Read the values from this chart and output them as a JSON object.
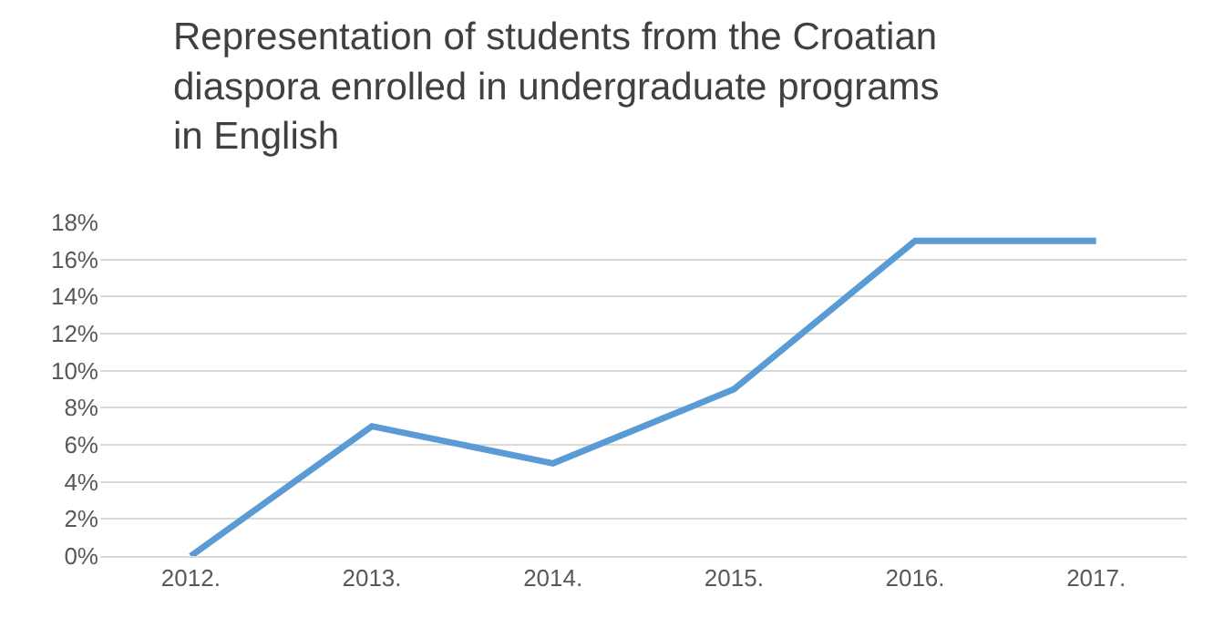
{
  "chart_data": {
    "type": "line",
    "title": "Representation of students from the Croatian diaspora enrolled in undergraduate programs in English",
    "categories": [
      "2012.",
      "2013.",
      "2014.",
      "2015.",
      "2016.",
      "2017."
    ],
    "series": [
      {
        "color": "#5b9bd5",
        "values": [
          0,
          7,
          5,
          9,
          17,
          17
        ]
      }
    ],
    "ylim": [
      0,
      18
    ],
    "yticks": [
      {
        "value": 0,
        "label": "0%"
      },
      {
        "value": 2,
        "label": "2%"
      },
      {
        "value": 4,
        "label": "4%"
      },
      {
        "value": 6,
        "label": "6%"
      },
      {
        "value": 8,
        "label": "8%"
      },
      {
        "value": 10,
        "label": "10%"
      },
      {
        "value": 12,
        "label": "12%"
      },
      {
        "value": 14,
        "label": "14%"
      },
      {
        "value": 16,
        "label": "16%"
      },
      {
        "value": 18,
        "label": "18%"
      }
    ],
    "grid": "y",
    "marker": "none",
    "line_style": "solid"
  }
}
